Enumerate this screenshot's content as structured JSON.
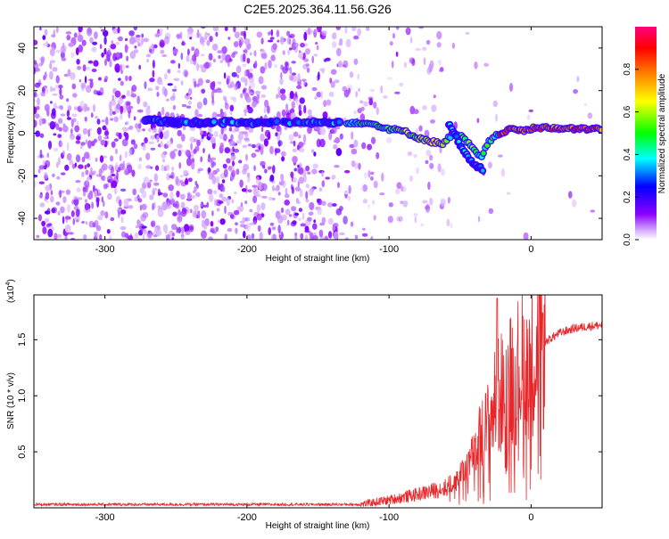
{
  "title": "C2E5.2025.364.11.56.G26",
  "chart_data": [
    {
      "type": "heatmap",
      "name": "spectrogram",
      "xlabel": "Height of straight line (km)",
      "ylabel": "Frequency (Hz)",
      "xlim": [
        -350,
        50
      ],
      "ylim": [
        -50,
        50
      ],
      "xticks": [
        -300,
        -200,
        -100,
        0
      ],
      "xtick_labels": [
        "-300",
        "-200",
        "-100",
        "0"
      ],
      "yticks": [
        -40,
        -20,
        0,
        20,
        40
      ],
      "ytick_labels": [
        "-40",
        "-20",
        "0",
        "20",
        "40"
      ],
      "ridge_track": {
        "x": [
          -272,
          -250,
          -200,
          -150,
          -120,
          -110,
          -100,
          -90,
          -80,
          -70,
          -62,
          -55,
          -48,
          -40,
          -35,
          -30,
          -26,
          -22,
          -18,
          -12,
          -5,
          0,
          10,
          20,
          30,
          40,
          50
        ],
        "y": [
          6,
          5,
          5,
          5,
          5,
          4,
          2,
          1,
          -2,
          -4,
          -5,
          0,
          -2,
          -8,
          -12,
          -4,
          -2,
          0,
          1,
          2,
          1,
          2,
          3,
          2,
          2,
          2,
          2
        ]
      },
      "secondary_track": {
        "x": [
          -58,
          -52,
          -46,
          -40,
          -34
        ],
        "y": [
          4,
          -3,
          -10,
          -15,
          -17
        ]
      },
      "colorbar": {
        "label": "Normalized spectral amplitude",
        "range": [
          0,
          1
        ],
        "ticks": [
          0.0,
          0.2,
          0.4,
          0.6,
          0.8
        ],
        "tick_labels": [
          "0.0",
          "0.2",
          "0.4",
          "0.6",
          "0.8"
        ],
        "colors": [
          "#ffffff",
          "#8b00ff",
          "#0000ff",
          "#00ffff",
          "#00ff00",
          "#ffff00",
          "#ff7f00",
          "#ff0000",
          "#ff0080"
        ]
      }
    },
    {
      "type": "line",
      "name": "snr",
      "xlabel": "Height of straight line (km)",
      "ylabel": "SNR (10 * v/v)",
      "y_multiplier_label": "(x10",
      "y_multiplier_exponent": "4",
      "y_multiplier_close": ")",
      "xlim": [
        -350,
        50
      ],
      "ylim": [
        0,
        1.9
      ],
      "xticks": [
        -300,
        -200,
        -100,
        0
      ],
      "xtick_labels": [
        "-300",
        "-200",
        "-100",
        "0"
      ],
      "yticks": [
        0.5,
        1.0,
        1.5
      ],
      "ytick_labels": [
        "0.5",
        "1.0",
        "1.5"
      ],
      "line_color": "#e8262a",
      "envelope": {
        "x": [
          -350,
          -120,
          -100,
          -80,
          -60,
          -50,
          -40,
          -30,
          -25,
          -20,
          -10,
          0,
          10,
          20,
          30,
          40,
          50
        ],
        "y": [
          0.03,
          0.03,
          0.07,
          0.12,
          0.18,
          0.28,
          0.5,
          0.75,
          0.95,
          1.05,
          1.22,
          1.35,
          1.48,
          1.56,
          1.6,
          1.62,
          1.63
        ]
      },
      "peak": {
        "x": -24,
        "y": 1.87
      }
    }
  ]
}
